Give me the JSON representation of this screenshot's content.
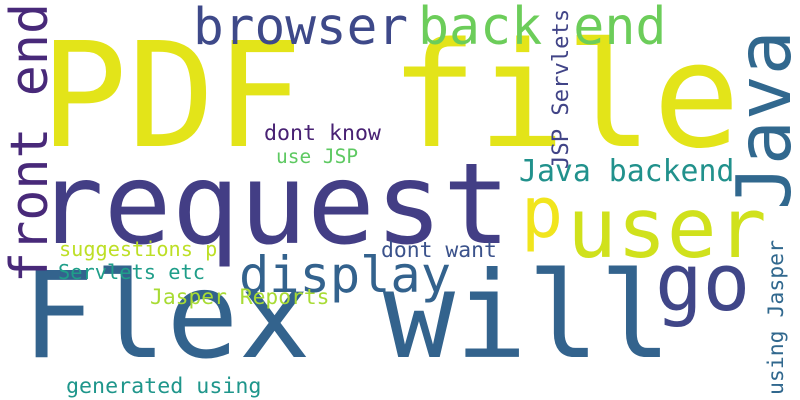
{
  "words": [
    {
      "id": "w1",
      "text": "PDF file",
      "color": "#e3e419",
      "rotated": false
    },
    {
      "id": "w2",
      "text": "request",
      "color": "#433e85",
      "rotated": false
    },
    {
      "id": "w3",
      "text": "Flex will",
      "color": "#33638d",
      "rotated": false
    },
    {
      "id": "w4",
      "text": "browser",
      "color": "#3e4989",
      "rotated": false
    },
    {
      "id": "w5",
      "text": "back end",
      "color": "#6ccd5a",
      "rotated": false
    },
    {
      "id": "w6",
      "text": "Java",
      "color": "#31688e",
      "rotated": true
    },
    {
      "id": "w7",
      "text": "user",
      "color": "#d0e11c",
      "rotated": false
    },
    {
      "id": "w8",
      "text": "p",
      "color": "#f1e51d",
      "rotated": false
    },
    {
      "id": "w9",
      "text": "go",
      "color": "#404688",
      "rotated": false
    },
    {
      "id": "w10",
      "text": "display",
      "color": "#33628d",
      "rotated": false
    },
    {
      "id": "w11",
      "text": "front end",
      "color": "#482979",
      "rotated": true
    },
    {
      "id": "w12",
      "text": "JSP Servlets",
      "color": "#414487",
      "rotated": true
    },
    {
      "id": "w13",
      "text": "dont know",
      "color": "#482173",
      "rotated": false
    },
    {
      "id": "w14",
      "text": "use JSP",
      "color": "#5ec962",
      "rotated": false
    },
    {
      "id": "w15",
      "text": "Java backend",
      "color": "#21918c",
      "rotated": false
    },
    {
      "id": "w16",
      "text": "suggestions p",
      "color": "#bddf26",
      "rotated": false
    },
    {
      "id": "w17",
      "text": "dont want",
      "color": "#3b528b",
      "rotated": false
    },
    {
      "id": "w18",
      "text": "Servlets etc",
      "color": "#1f9e89",
      "rotated": false
    },
    {
      "id": "w19",
      "text": "Jasper Reports",
      "color": "#a8db34",
      "rotated": false
    },
    {
      "id": "w20",
      "text": "using Jasper",
      "color": "#31688e",
      "rotated": true
    },
    {
      "id": "w21",
      "text": "generated using",
      "color": "#1f968b",
      "rotated": false
    }
  ]
}
